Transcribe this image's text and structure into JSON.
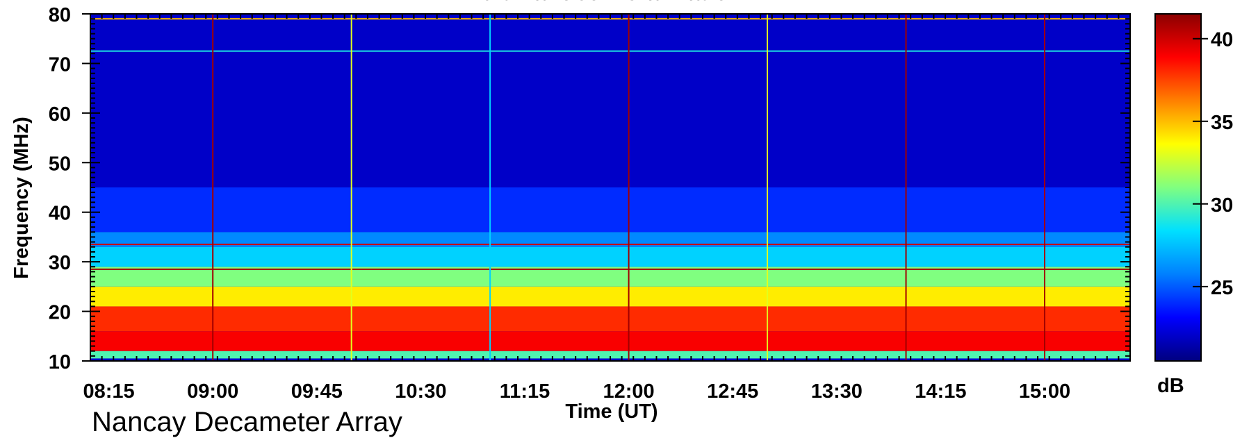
{
  "chart_data": {
    "type": "heatmap",
    "title": "Left Handed Polarization",
    "credit": "Nancay Decameter Array",
    "xlabel": "Time (UT)",
    "ylabel": "Frequency (MHz)",
    "colorbar_label": "dB",
    "x_ticks": [
      "08:15",
      "09:00",
      "09:45",
      "10:30",
      "11:15",
      "12:00",
      "12:45",
      "13:30",
      "14:15",
      "15:00"
    ],
    "x_range": [
      "08:07",
      "15:37"
    ],
    "y_ticks": [
      10,
      20,
      30,
      40,
      50,
      60,
      70,
      80
    ],
    "y_range": [
      10,
      80
    ],
    "colorbar_ticks": [
      25,
      30,
      35,
      40
    ],
    "colorbar_range": [
      20.5,
      41.5
    ],
    "colormap": [
      "#00007f",
      "#0000ff",
      "#0080ff",
      "#00e0ff",
      "#80ff80",
      "#ffff00",
      "#ff8000",
      "#ff0000",
      "#8b0000"
    ],
    "background_level_db": 22,
    "calibration_lines": [
      {
        "time": "09:00",
        "level_db": 41
      },
      {
        "time": "10:00",
        "level_db": 33
      },
      {
        "time": "11:00",
        "level_db": 28
      },
      {
        "time": "12:00",
        "level_db": 41
      },
      {
        "time": "13:00",
        "level_db": 33
      },
      {
        "time": "14:00",
        "level_db": 41
      },
      {
        "time": "15:00",
        "level_db": 41
      }
    ],
    "frequency_bands": [
      {
        "freq_from": 10.5,
        "freq_to": 12,
        "level_db": 30
      },
      {
        "freq_from": 12,
        "freq_to": 16,
        "level_db": 39
      },
      {
        "freq_from": 16,
        "freq_to": 21,
        "level_db": 38
      },
      {
        "freq_from": 21,
        "freq_to": 25,
        "level_db": 34
      },
      {
        "freq_from": 25,
        "freq_to": 29,
        "level_db": 31
      },
      {
        "freq_from": 29,
        "freq_to": 33,
        "level_db": 28
      },
      {
        "freq_from": 33,
        "freq_to": 36,
        "level_db": 26
      },
      {
        "freq_from": 36,
        "freq_to": 45,
        "level_db": 24
      }
    ],
    "horizontal_lines": [
      {
        "freq": 79,
        "level_db": 35
      },
      {
        "freq": 72.5,
        "level_db": 29
      },
      {
        "freq": 33.5,
        "level_db": 40
      },
      {
        "freq": 28.5,
        "level_db": 41
      }
    ]
  }
}
